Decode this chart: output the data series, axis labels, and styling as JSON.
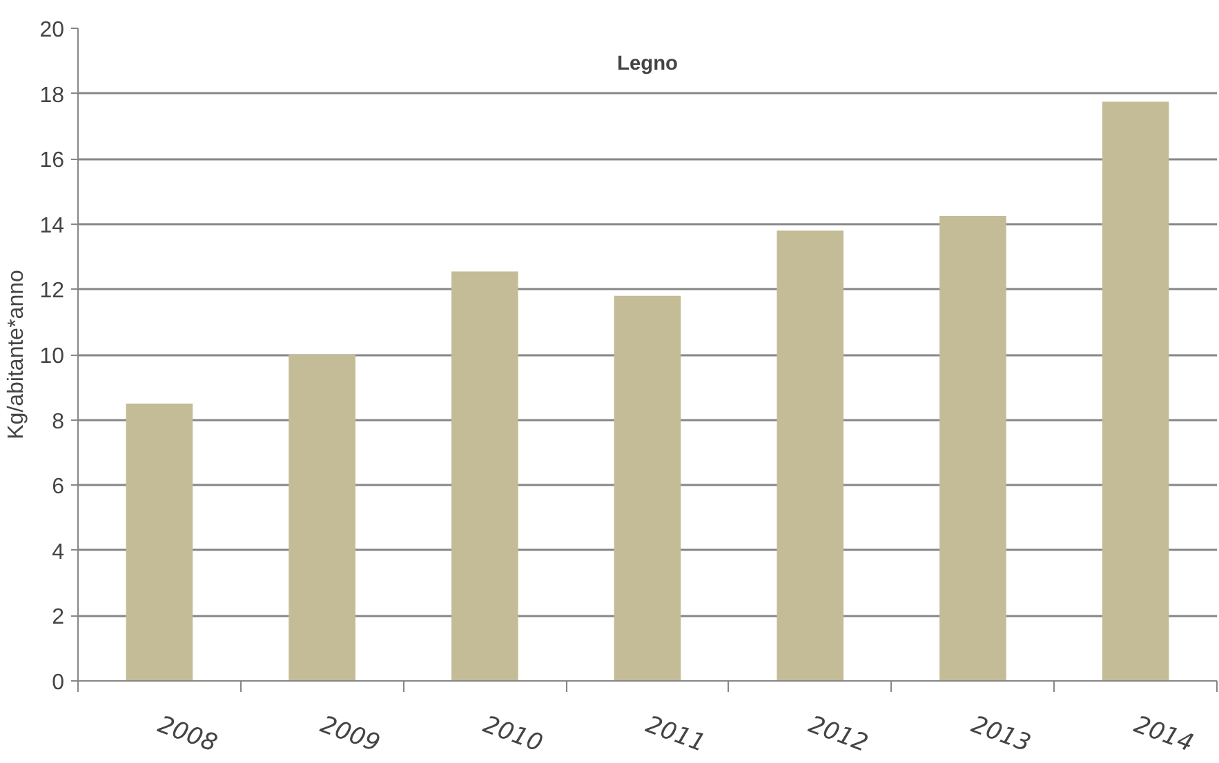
{
  "chart_data": {
    "type": "bar",
    "title": "Legno",
    "ylabel": "Kg/abitante*anno",
    "categories": [
      "2008",
      "2009",
      "2010",
      "2011",
      "2012",
      "2013",
      "2014"
    ],
    "values": [
      8.5,
      10.0,
      12.55,
      11.8,
      13.8,
      14.25,
      17.75
    ],
    "color": "#c4bc96",
    "ylim": [
      0,
      20
    ],
    "yticks": [
      0,
      2,
      4,
      6,
      8,
      10,
      12,
      14,
      16,
      18,
      20
    ],
    "grid": "y"
  }
}
